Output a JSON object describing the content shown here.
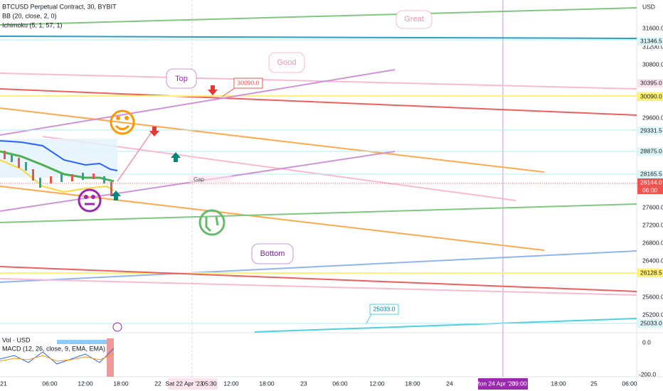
{
  "header": {
    "symbol": "BTCUSD Perpetual Contract, 30, BYBIT",
    "bb": "BB (20, close, 2, 0)",
    "ichimoku": "Ichimoku (5, 1, 57, 1)"
  },
  "price_axis": {
    "currency": "USD",
    "labels": [
      "31600.0",
      "31200.0",
      "30800.0",
      "29600.0",
      "27600.0",
      "27200.0",
      "26800.0",
      "26400.0",
      "25600.0",
      "25200.0"
    ],
    "badges": [
      "31346.5",
      "30395.0",
      "30090.0",
      "29331.5",
      "28875.0",
      "28165.5",
      "26128.5",
      "25033.0"
    ],
    "last_price": "28144.0",
    "countdown": "06:00"
  },
  "indicator": {
    "volume": "Vol · USD",
    "macd": "MACD (12, 26, close, 9, EMA, EMA)",
    "axis": [
      "0.0",
      "-200.0"
    ]
  },
  "time_axis": {
    "labels": [
      "21",
      "06:00",
      "12:00",
      "18:00",
      "22",
      "12:00",
      "18:00",
      "23",
      "06:00",
      "12:00",
      "18:00",
      "24",
      "18:00",
      "25",
      "06:00"
    ],
    "cursor_left": "Sat 22 Apr '23",
    "cursor_left_time": "05:30",
    "cursor_right": "Mon 24 Apr '23",
    "cursor_right_time": "09:00"
  },
  "annotations": {
    "great": "Great",
    "good": "Good",
    "top": "Top",
    "top_price": "30090.0",
    "gap": "Gap",
    "bottom": "Bottom",
    "bottom_price": "25033.0"
  }
}
